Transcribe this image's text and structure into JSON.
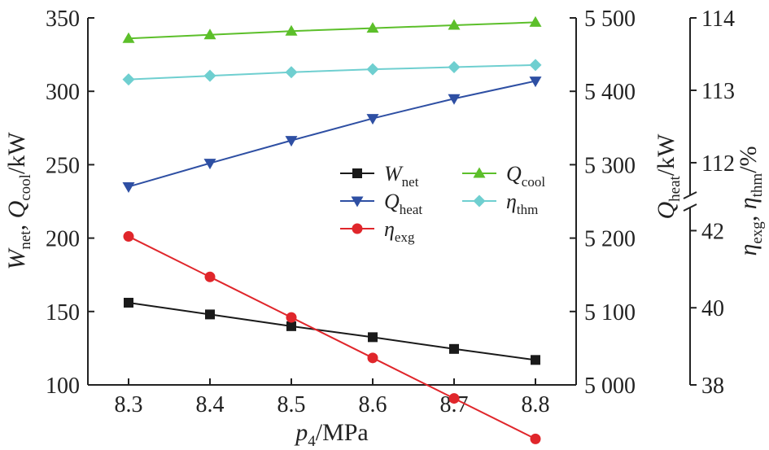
{
  "chart_data": {
    "type": "line",
    "x": [
      8.3,
      8.4,
      8.5,
      8.6,
      8.7,
      8.8
    ],
    "x_ticks": [
      "8.3",
      "8.4",
      "8.5",
      "8.6",
      "8.7",
      "8.8"
    ],
    "xlabel": {
      "main": "p",
      "sub": "4",
      "unit": "/MPa"
    },
    "ylabel_left": {
      "a": "W",
      "a_sub": "net",
      "sep": ", ",
      "b": "Q",
      "b_sub": "cool",
      "unit": "/kW"
    },
    "ylabel_right1": {
      "a": "Q",
      "a_sub": "heat",
      "unit": "/kW"
    },
    "ylabel_right2": {
      "a": "η",
      "a_sub": "exg",
      "sep": ", ",
      "b": "η",
      "b_sub": "thm",
      "unit": "/%"
    },
    "axes": {
      "left": {
        "ylim": [
          100,
          350
        ],
        "ticks": [
          "100",
          "150",
          "200",
          "250",
          "300",
          "350"
        ]
      },
      "right1": {
        "ylim": [
          5000,
          5500
        ],
        "ticks": [
          "5 000",
          "5 100",
          "5 200",
          "5 300",
          "5 400",
          "5 500"
        ]
      },
      "right2_lower": {
        "ylim": [
          38,
          42.6
        ],
        "ticks": [
          "38",
          "40",
          "42"
        ]
      },
      "right2_upper": {
        "ylim": [
          111.55,
          114
        ],
        "ticks": [
          "112",
          "113",
          "114"
        ]
      }
    },
    "series": [
      {
        "name": "W",
        "sub": "net",
        "axis": "left",
        "color": "#1a1a1a",
        "marker": "square",
        "values": [
          156,
          148,
          140,
          132.5,
          124.5,
          117
        ]
      },
      {
        "name": "Q",
        "sub": "heat",
        "axis": "right1",
        "color": "#2e4fa3",
        "marker": "triangle-down",
        "values": [
          5270,
          5302,
          5333,
          5363,
          5390,
          5414
        ]
      },
      {
        "name": "η",
        "sub": "exg",
        "axis": "right2_lower",
        "color": "#e0262b",
        "marker": "circle",
        "values": [
          41.85,
          40.8,
          39.75,
          38.7,
          37.65,
          36.6
        ]
      },
      {
        "name": "Q",
        "sub": "cool",
        "axis": "left",
        "color": "#5cbf2a",
        "marker": "triangle-up",
        "values": [
          336,
          338.5,
          341,
          343,
          345,
          347
        ]
      },
      {
        "name": "η",
        "sub": "thm",
        "axis": "right2_upper",
        "color": "#6fcfd0",
        "marker": "diamond",
        "values": [
          113.15,
          113.2,
          113.25,
          113.29,
          113.32,
          113.35
        ]
      }
    ]
  }
}
